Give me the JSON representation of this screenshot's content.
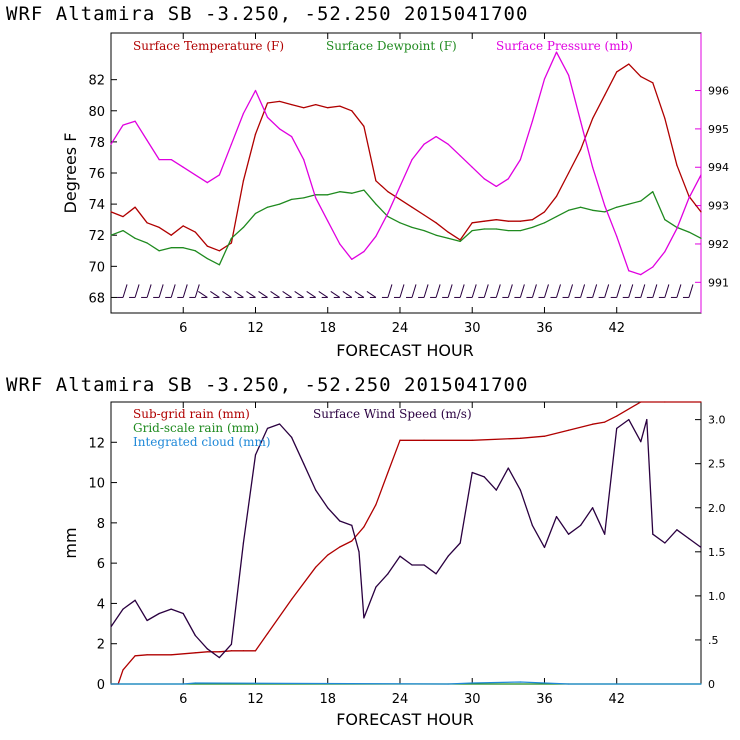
{
  "colors": {
    "temperature": "#b00000",
    "dewpoint": "#1f8a1f",
    "pressure": "#e000e0",
    "subgrid": "#b00000",
    "gridscale": "#1f8a1f",
    "cloud": "#1e88d8",
    "wind": "#2a0040",
    "barb": "#2a0040"
  },
  "chart_data": [
    {
      "type": "line",
      "title": "WRF   Altamira  SB  -3.250, -52.250  2015041700",
      "xlabel": "FORECAST HOUR",
      "ylabel": "Degrees F",
      "xlim": [
        0,
        49
      ],
      "ylim": [
        67,
        85
      ],
      "y2lim": [
        990.2,
        997.5
      ],
      "x_ticks": [
        6,
        12,
        18,
        24,
        30,
        36,
        42
      ],
      "x_tick_labels": [
        "6",
        "12",
        "18",
        "24",
        "30",
        "36",
        "42"
      ],
      "y_ticks": [
        68,
        70,
        72,
        74,
        76,
        78,
        80,
        82
      ],
      "y_tick_labels": [
        "68",
        "70",
        "72",
        "74",
        "76",
        "78",
        "80",
        "82"
      ],
      "y2_ticks": [
        991,
        992,
        993,
        994,
        995,
        996
      ],
      "y2_tick_labels": [
        "991",
        "992",
        "993",
        "994",
        "995",
        "996"
      ],
      "legend": [
        "Surface Temperature (F)",
        "Surface Dewpoint (F)",
        "Surface Pressure (mb)"
      ],
      "series": [
        {
          "name": "Surface Temperature (F)",
          "axis": "left",
          "x": [
            0,
            1,
            2,
            3,
            4,
            5,
            6,
            7,
            8,
            9,
            10,
            11,
            12,
            13,
            14,
            15,
            16,
            17,
            18,
            19,
            20,
            21,
            22,
            23,
            24,
            25,
            26,
            27,
            28,
            29,
            30,
            31,
            32,
            33,
            34,
            35,
            36,
            37,
            38,
            39,
            40,
            41,
            42,
            43,
            44,
            45,
            46,
            47,
            48,
            49
          ],
          "values": [
            73.5,
            73.2,
            73.8,
            72.8,
            72.5,
            72.0,
            72.6,
            72.2,
            71.3,
            71.0,
            71.5,
            75.5,
            78.5,
            80.5,
            80.6,
            80.4,
            80.2,
            80.4,
            80.2,
            80.3,
            80.0,
            79.0,
            75.5,
            74.8,
            74.3,
            73.8,
            73.3,
            72.8,
            72.2,
            71.7,
            72.8,
            72.9,
            73.0,
            72.9,
            72.9,
            73.0,
            73.5,
            74.5,
            76.0,
            77.5,
            79.5,
            81.0,
            82.5,
            83.0,
            82.2,
            81.8,
            79.5,
            76.5,
            74.5,
            73.5
          ]
        },
        {
          "name": "Surface Dewpoint (F)",
          "axis": "left",
          "x": [
            0,
            1,
            2,
            3,
            4,
            5,
            6,
            7,
            8,
            9,
            10,
            11,
            12,
            13,
            14,
            15,
            16,
            17,
            18,
            19,
            20,
            21,
            22,
            23,
            24,
            25,
            26,
            27,
            28,
            29,
            30,
            31,
            32,
            33,
            34,
            35,
            36,
            37,
            38,
            39,
            40,
            41,
            42,
            43,
            44,
            45,
            46,
            47,
            48,
            49
          ],
          "values": [
            72.0,
            72.3,
            71.8,
            71.5,
            71.0,
            71.2,
            71.2,
            71.0,
            70.5,
            70.1,
            71.8,
            72.5,
            73.4,
            73.8,
            74.0,
            74.3,
            74.4,
            74.6,
            74.6,
            74.8,
            74.7,
            74.9,
            74.0,
            73.2,
            72.8,
            72.5,
            72.3,
            72.0,
            71.8,
            71.6,
            72.3,
            72.4,
            72.4,
            72.3,
            72.3,
            72.5,
            72.8,
            73.2,
            73.6,
            73.8,
            73.6,
            73.5,
            73.8,
            74.0,
            74.2,
            74.8,
            73.0,
            72.5,
            72.2,
            71.8
          ]
        },
        {
          "name": "Surface Pressure (mb)",
          "axis": "right",
          "x": [
            0,
            1,
            2,
            3,
            4,
            5,
            6,
            7,
            8,
            9,
            10,
            11,
            12,
            13,
            14,
            15,
            16,
            17,
            18,
            19,
            20,
            21,
            22,
            23,
            24,
            25,
            26,
            27,
            28,
            29,
            30,
            31,
            32,
            33,
            34,
            35,
            36,
            37,
            38,
            39,
            40,
            41,
            42,
            43,
            44,
            45,
            46,
            47,
            48,
            49
          ],
          "values": [
            994.6,
            995.1,
            995.2,
            994.7,
            994.2,
            994.2,
            994.0,
            993.8,
            993.6,
            993.8,
            994.6,
            995.4,
            996.0,
            995.3,
            995.0,
            994.8,
            994.2,
            993.2,
            992.6,
            992.0,
            991.6,
            991.8,
            992.2,
            992.8,
            993.5,
            994.2,
            994.6,
            994.8,
            994.6,
            994.3,
            994.0,
            993.7,
            993.5,
            993.7,
            994.2,
            995.2,
            996.3,
            997.0,
            996.4,
            995.2,
            994.0,
            993.0,
            992.2,
            991.3,
            991.2,
            991.4,
            991.8,
            992.4,
            993.2,
            993.8
          ]
        }
      ],
      "wind_barbs": "hourly surface wind barbs along the bottom of the temperature panel"
    },
    {
      "type": "line",
      "title": "WRF   Altamira  SB  -3.250, -52.250  2015041700",
      "xlabel": "FORECAST HOUR",
      "ylabel": "mm",
      "xlim": [
        0,
        49
      ],
      "ylim": [
        0,
        14
      ],
      "y2lim": [
        0,
        3.2
      ],
      "x_ticks": [
        6,
        12,
        18,
        24,
        30,
        36,
        42
      ],
      "x_tick_labels": [
        "6",
        "12",
        "18",
        "24",
        "30",
        "36",
        "42"
      ],
      "y_ticks": [
        0,
        2,
        4,
        6,
        8,
        10,
        12
      ],
      "y_tick_labels": [
        "0",
        "2",
        "4",
        "6",
        "8",
        "10",
        "12"
      ],
      "y2_ticks": [
        0,
        0.5,
        1.0,
        1.5,
        2.0,
        2.5,
        3.0
      ],
      "y2_tick_labels": [
        "0",
        ".5",
        "1.0",
        "1.5",
        "2.0",
        "2.5",
        "3.0"
      ],
      "legend": [
        "Sub-grid rain (mm)",
        "Grid-scale rain (mm)",
        "Integrated cloud (mm)",
        "Surface Wind Speed (m/s)"
      ],
      "series": [
        {
          "name": "Sub-grid rain (mm)",
          "axis": "left",
          "x": [
            0,
            0.6,
            1,
            2,
            3,
            5,
            7,
            8,
            9,
            10,
            11,
            12,
            13,
            15,
            17,
            18,
            19,
            20,
            21,
            22,
            23,
            24,
            26,
            30,
            34,
            36,
            38,
            40,
            41,
            42,
            44,
            46,
            49
          ],
          "values": [
            0,
            0,
            0.7,
            1.4,
            1.45,
            1.45,
            1.55,
            1.6,
            1.6,
            1.65,
            1.65,
            1.65,
            2.5,
            4.2,
            5.8,
            6.4,
            6.8,
            7.1,
            7.8,
            8.9,
            10.5,
            12.1,
            12.1,
            12.1,
            12.2,
            12.3,
            12.6,
            12.9,
            13.0,
            13.3,
            14.0,
            14.0,
            14.0
          ]
        },
        {
          "name": "Grid-scale rain (mm)",
          "axis": "left",
          "x": [
            0,
            49
          ],
          "values": [
            0,
            0
          ]
        },
        {
          "name": "Integrated cloud (mm)",
          "axis": "left",
          "x": [
            0,
            6,
            7,
            28,
            30,
            34,
            36,
            38,
            49
          ],
          "values": [
            0,
            0,
            0.05,
            0,
            0.05,
            0.1,
            0.05,
            0,
            0
          ]
        },
        {
          "name": "Surface Wind Speed (m/s)",
          "axis": "right",
          "x": [
            0,
            1,
            2,
            3,
            4,
            5,
            6,
            7,
            8,
            9,
            10,
            11,
            12,
            13,
            14,
            15,
            16,
            17,
            18,
            19,
            20,
            20.6,
            21,
            22,
            23,
            24,
            25,
            26,
            27,
            28,
            29,
            30,
            31,
            32,
            33,
            34,
            35,
            36,
            37,
            38,
            39,
            40,
            41,
            42,
            43,
            44,
            44.5,
            45,
            46,
            47,
            48,
            49
          ],
          "values": [
            0.65,
            0.85,
            0.95,
            0.72,
            0.8,
            0.85,
            0.8,
            0.55,
            0.4,
            0.3,
            0.45,
            1.6,
            2.6,
            2.9,
            2.95,
            2.8,
            2.5,
            2.2,
            2.0,
            1.85,
            1.8,
            1.5,
            0.75,
            1.1,
            1.25,
            1.45,
            1.35,
            1.35,
            1.25,
            1.45,
            1.6,
            2.4,
            2.35,
            2.2,
            2.45,
            2.2,
            1.8,
            1.55,
            1.9,
            1.7,
            1.8,
            2.0,
            1.7,
            2.9,
            3.0,
            2.75,
            3.0,
            1.7,
            1.6,
            1.75,
            1.65,
            1.55
          ]
        }
      ]
    }
  ]
}
